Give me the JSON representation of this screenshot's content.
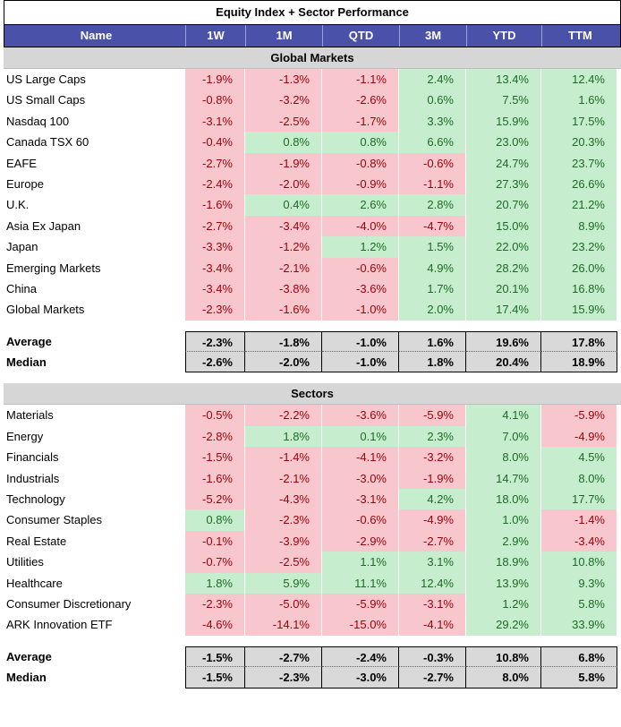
{
  "title": "Equity Index + Sector Performance",
  "columns": [
    "Name",
    "1W",
    "1M",
    "QTD",
    "3M",
    "YTD",
    "TTM"
  ],
  "sections": [
    {
      "label": "Global Markets",
      "rows": [
        {
          "name": "US Large Caps",
          "values": [
            "-1.9%",
            "-1.3%",
            "-1.1%",
            "2.4%",
            "13.4%",
            "12.4%"
          ]
        },
        {
          "name": "US Small Caps",
          "values": [
            "-0.8%",
            "-3.2%",
            "-2.6%",
            "0.6%",
            "7.5%",
            "1.6%"
          ]
        },
        {
          "name": "Nasdaq 100",
          "values": [
            "-3.1%",
            "-2.5%",
            "-1.7%",
            "3.3%",
            "15.9%",
            "17.5%"
          ]
        },
        {
          "name": "Canada TSX 60",
          "values": [
            "-0.4%",
            "0.8%",
            "0.8%",
            "6.6%",
            "23.0%",
            "20.3%"
          ]
        },
        {
          "name": "EAFE",
          "values": [
            "-2.7%",
            "-1.9%",
            "-0.8%",
            "-0.6%",
            "24.7%",
            "23.7%"
          ]
        },
        {
          "name": "Europe",
          "values": [
            "-2.4%",
            "-2.0%",
            "-0.9%",
            "-1.1%",
            "27.3%",
            "26.6%"
          ]
        },
        {
          "name": "U.K.",
          "values": [
            "-1.6%",
            "0.4%",
            "2.6%",
            "2.8%",
            "20.7%",
            "21.2%"
          ]
        },
        {
          "name": "Asia Ex Japan",
          "values": [
            "-2.7%",
            "-3.4%",
            "-4.0%",
            "-4.7%",
            "15.0%",
            "8.9%"
          ]
        },
        {
          "name": "Japan",
          "values": [
            "-3.3%",
            "-1.2%",
            "1.2%",
            "1.5%",
            "22.0%",
            "23.2%"
          ]
        },
        {
          "name": "Emerging Markets",
          "values": [
            "-3.4%",
            "-2.1%",
            "-0.6%",
            "4.9%",
            "28.2%",
            "26.0%"
          ]
        },
        {
          "name": "China",
          "values": [
            "-3.4%",
            "-3.8%",
            "-3.6%",
            "1.7%",
            "20.1%",
            "16.8%"
          ]
        },
        {
          "name": "Global Markets",
          "values": [
            "-2.3%",
            "-1.6%",
            "-1.0%",
            "2.0%",
            "17.4%",
            "15.9%"
          ]
        }
      ],
      "stats": [
        {
          "name": "Average",
          "values": [
            "-2.3%",
            "-1.8%",
            "-1.0%",
            "1.6%",
            "19.6%",
            "17.8%"
          ]
        },
        {
          "name": "Median",
          "values": [
            "-2.6%",
            "-2.0%",
            "-1.0%",
            "1.8%",
            "20.4%",
            "18.9%"
          ]
        }
      ]
    },
    {
      "label": "Sectors",
      "rows": [
        {
          "name": "Materials",
          "values": [
            "-0.5%",
            "-2.2%",
            "-3.6%",
            "-5.9%",
            "4.1%",
            "-5.9%"
          ]
        },
        {
          "name": "Energy",
          "values": [
            "-2.8%",
            "1.8%",
            "0.1%",
            "2.3%",
            "7.0%",
            "-4.9%"
          ]
        },
        {
          "name": "Financials",
          "values": [
            "-1.5%",
            "-1.4%",
            "-4.1%",
            "-3.2%",
            "8.0%",
            "4.5%"
          ]
        },
        {
          "name": "Industrials",
          "values": [
            "-1.6%",
            "-2.1%",
            "-3.0%",
            "-1.9%",
            "14.7%",
            "8.0%"
          ]
        },
        {
          "name": "Technology",
          "values": [
            "-5.2%",
            "-4.3%",
            "-3.1%",
            "4.2%",
            "18.0%",
            "17.7%"
          ]
        },
        {
          "name": "Consumer Staples",
          "values": [
            "0.8%",
            "-2.3%",
            "-0.6%",
            "-4.9%",
            "1.0%",
            "-1.4%"
          ]
        },
        {
          "name": "Real Estate",
          "values": [
            "-0.1%",
            "-3.9%",
            "-2.9%",
            "-2.7%",
            "2.9%",
            "-3.4%"
          ]
        },
        {
          "name": "Utilities",
          "values": [
            "-0.7%",
            "-2.5%",
            "1.1%",
            "3.1%",
            "18.9%",
            "10.8%"
          ]
        },
        {
          "name": "Healthcare",
          "values": [
            "1.8%",
            "5.9%",
            "11.1%",
            "12.4%",
            "13.9%",
            "9.3%"
          ]
        },
        {
          "name": "Consumer Discretionary",
          "values": [
            "-2.3%",
            "-5.0%",
            "-5.9%",
            "-3.1%",
            "1.2%",
            "5.8%"
          ]
        },
        {
          "name": "ARK Innovation ETF",
          "values": [
            "-4.6%",
            "-14.1%",
            "-15.0%",
            "-4.1%",
            "29.2%",
            "33.9%"
          ]
        }
      ],
      "stats": [
        {
          "name": "Average",
          "values": [
            "-1.5%",
            "-2.7%",
            "-2.4%",
            "-0.3%",
            "10.8%",
            "6.8%"
          ]
        },
        {
          "name": "Median",
          "values": [
            "-1.5%",
            "-2.3%",
            "-3.0%",
            "-2.7%",
            "8.0%",
            "5.8%"
          ]
        }
      ]
    }
  ],
  "colors": {
    "header_bg": "#4a51a9",
    "negative_bg": "#f8c7ce",
    "negative_text": "#9c0006",
    "positive_bg": "#c6eece",
    "positive_text": "#1b6b23",
    "section_bg": "#d6d6d6",
    "stat_bg": "#d9d9d9"
  }
}
